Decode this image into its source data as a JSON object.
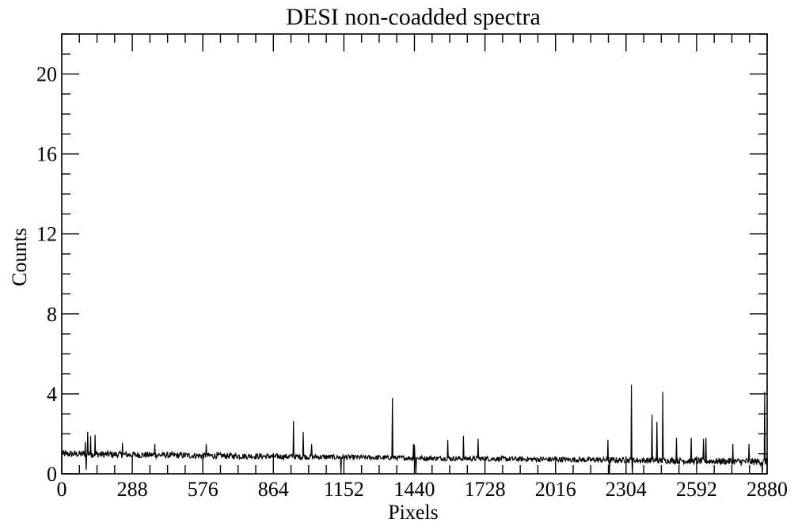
{
  "chart_data": {
    "type": "line",
    "title": "DESI non-coadded spectra",
    "xlabel": "Pixels",
    "ylabel": "Counts",
    "xlim": [
      0,
      2880
    ],
    "ylim": [
      0,
      22
    ],
    "x_ticks": [
      0,
      288,
      576,
      864,
      1152,
      1440,
      1728,
      2016,
      2304,
      2592,
      2880
    ],
    "y_ticks": [
      0,
      4,
      8,
      12,
      16,
      20
    ],
    "grid": false,
    "series": [
      {
        "color": "#000000",
        "baseline": {
          "x": [
            0,
            500,
            1000,
            1500,
            2000,
            2500,
            2880
          ],
          "y": [
            1.0,
            0.92,
            0.85,
            0.78,
            0.72,
            0.66,
            0.6
          ]
        },
        "spikes": [
          {
            "x": 95,
            "y": 1.6
          },
          {
            "x": 105,
            "y": 2.1
          },
          {
            "x": 118,
            "y": 1.9
          },
          {
            "x": 135,
            "y": 1.95
          },
          {
            "x": 247,
            "y": 1.55
          },
          {
            "x": 380,
            "y": 1.5
          },
          {
            "x": 590,
            "y": 1.5
          },
          {
            "x": 945,
            "y": 2.65
          },
          {
            "x": 985,
            "y": 2.1
          },
          {
            "x": 1020,
            "y": 1.5
          },
          {
            "x": 1350,
            "y": 3.8
          },
          {
            "x": 1435,
            "y": 1.5
          },
          {
            "x": 1440,
            "y": 1.45
          },
          {
            "x": 1575,
            "y": 1.7
          },
          {
            "x": 1640,
            "y": 1.9
          },
          {
            "x": 1700,
            "y": 1.75
          },
          {
            "x": 2230,
            "y": 1.7
          },
          {
            "x": 2325,
            "y": 4.45
          },
          {
            "x": 2410,
            "y": 2.95
          },
          {
            "x": 2430,
            "y": 2.6
          },
          {
            "x": 2453,
            "y": 4.1
          },
          {
            "x": 2510,
            "y": 1.8
          },
          {
            "x": 2570,
            "y": 1.8
          },
          {
            "x": 2620,
            "y": 1.75
          },
          {
            "x": 2630,
            "y": 1.8
          },
          {
            "x": 2740,
            "y": 1.5
          },
          {
            "x": 2805,
            "y": 1.5
          },
          {
            "x": 2860,
            "y": 2.7
          },
          {
            "x": 2870,
            "y": 4.1
          }
        ],
        "dips": [
          {
            "x": 100,
            "y": 0.2
          },
          {
            "x": 1140,
            "y": 0.0
          },
          {
            "x": 1445,
            "y": 0.0
          },
          {
            "x": 2235,
            "y": 0.0
          },
          {
            "x": 2330,
            "y": 0.0
          },
          {
            "x": 2860,
            "y": 0.0
          }
        ],
        "noise_amplitude": [
          {
            "x": 0,
            "a": 0.18
          },
          {
            "x": 1400,
            "a": 0.12
          },
          {
            "x": 2200,
            "a": 0.14
          },
          {
            "x": 2880,
            "a": 0.18
          }
        ]
      }
    ]
  }
}
